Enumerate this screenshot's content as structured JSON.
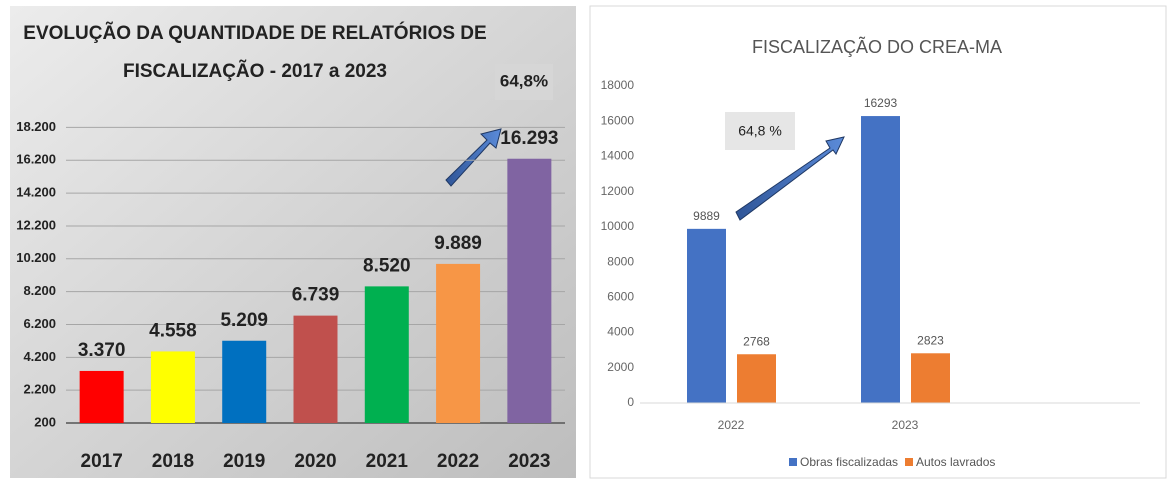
{
  "chart_data": [
    {
      "type": "bar",
      "title": [
        "EVOLUÇÃO DA QUANTIDADE DE RELATÓRIOS DE",
        "FISCALIZAÇÃO - 2017 a 2023"
      ],
      "annotations": [
        "64,8%"
      ],
      "categories": [
        "2017",
        "2018",
        "2019",
        "2020",
        "2021",
        "2022",
        "2023"
      ],
      "values": [
        3370,
        4558,
        5209,
        6739,
        8520,
        9889,
        16293
      ],
      "value_labels": [
        "3.370",
        "4.558",
        "5.209",
        "6.739",
        "8.520",
        "9.889",
        "16.293"
      ],
      "colors": [
        "#ff0000",
        "#ffff00",
        "#0070c0",
        "#c0504d",
        "#00b050",
        "#f79646",
        "#8064a2"
      ],
      "ylim": [
        200,
        19200
      ],
      "yticks": [
        {
          "value": 200,
          "label": "200"
        },
        {
          "value": 2200,
          "label": "2.200"
        },
        {
          "value": 4200,
          "label": "4.200"
        },
        {
          "value": 6200,
          "label": "6.200"
        },
        {
          "value": 8200,
          "label": "8.200"
        },
        {
          "value": 10200,
          "label": "10.200"
        },
        {
          "value": 12200,
          "label": "12.200"
        },
        {
          "value": 14200,
          "label": "14.200"
        },
        {
          "value": 16200,
          "label": "16.200"
        },
        {
          "value": 18200,
          "label": "18.200"
        }
      ],
      "grid": true
    },
    {
      "type": "grouped_bar",
      "title": "FISCALIZAÇÃO DO CREA-MA",
      "annotations": [
        "64,8 %"
      ],
      "categories": [
        "2022",
        "2023"
      ],
      "series": [
        {
          "name": "Obras fiscalizadas",
          "color": "#4472c4",
          "values": [
            9889,
            16293
          ]
        },
        {
          "name": "Autos lavrados",
          "color": "#ed7d31",
          "values": [
            2768,
            2823
          ]
        }
      ],
      "ylim": [
        0,
        18000
      ],
      "yticks": [
        0,
        2000,
        4000,
        6000,
        8000,
        10000,
        12000,
        14000,
        16000,
        18000
      ],
      "grid": false,
      "legend": "bottom"
    }
  ]
}
